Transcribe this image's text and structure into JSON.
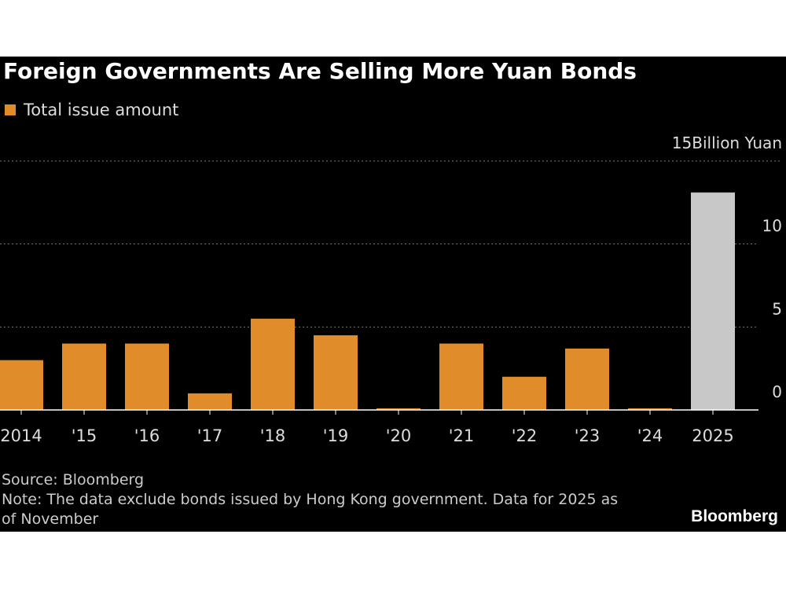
{
  "chart_data": {
    "type": "bar",
    "title": "Foreign Governments Are Selling More Yuan Bonds",
    "categories": [
      "2014",
      "'15",
      "'16",
      "'17",
      "'18",
      "'19",
      "'20",
      "'21",
      "'22",
      "'23",
      "'24",
      "2025"
    ],
    "series": [
      {
        "name": "Total issue amount",
        "color": "#e08c2b",
        "values": [
          3.0,
          4.0,
          4.0,
          1.0,
          5.5,
          4.5,
          0.1,
          4.0,
          2.0,
          3.7,
          0.1,
          13.1
        ]
      }
    ],
    "bar_colors": [
      "#e08c2b",
      "#e08c2b",
      "#e08c2b",
      "#e08c2b",
      "#e08c2b",
      "#e08c2b",
      "#e08c2b",
      "#e08c2b",
      "#e08c2b",
      "#e08c2b",
      "#e08c2b",
      "#c8c8c8"
    ],
    "ylim": [
      0,
      15
    ],
    "yticks": [
      0,
      5,
      10,
      {
        "value": 15,
        "label": "15Billion Yuan"
      }
    ],
    "grid": true,
    "source": "Source: Bloomberg",
    "note": "Note: The data exclude bonds issued by Hong Kong government. Data for 2025 as of November",
    "brand": "Bloomberg"
  }
}
